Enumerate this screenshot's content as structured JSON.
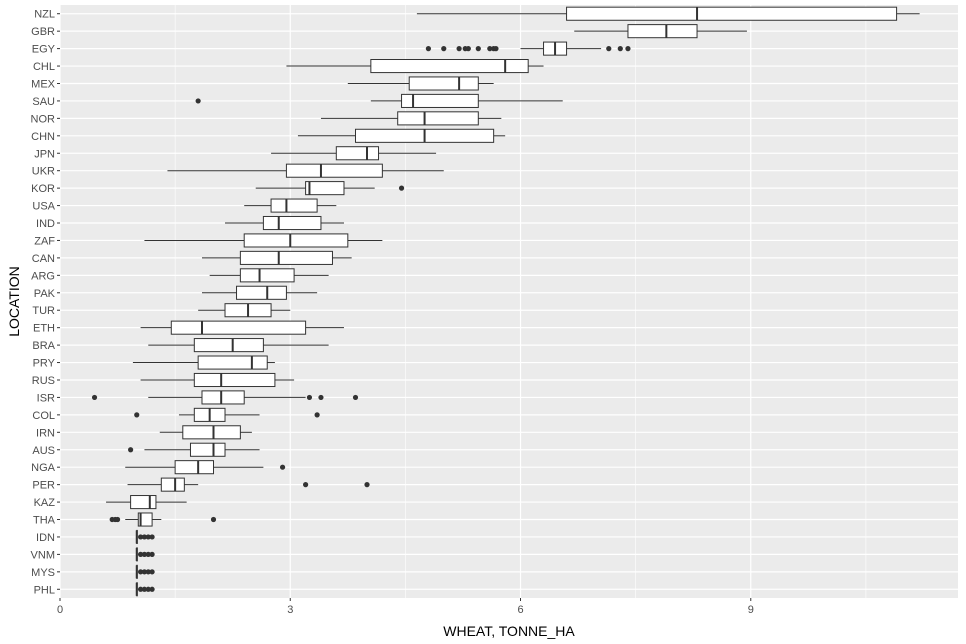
{
  "chart_data": {
    "type": "boxplot",
    "orientation": "horizontal",
    "xlabel": "WHEAT, TONNE_HA",
    "ylabel": "LOCATION",
    "xlim": [
      0,
      11.7
    ],
    "x_ticks": [
      0,
      3,
      6,
      9
    ],
    "x_tick_labels": [
      "0",
      "3",
      "6",
      "9"
    ],
    "grid": true,
    "colors": {
      "panel": "#ebebeb",
      "grid_major": "#ffffff",
      "box_fill": "#ffffff",
      "stroke": "#333333"
    },
    "categories": [
      "NZL",
      "GBR",
      "EGY",
      "CHL",
      "MEX",
      "SAU",
      "NOR",
      "CHN",
      "JPN",
      "UKR",
      "KOR",
      "USA",
      "IND",
      "ZAF",
      "CAN",
      "ARG",
      "PAK",
      "TUR",
      "ETH",
      "BRA",
      "PRY",
      "RUS",
      "ISR",
      "COL",
      "IRN",
      "AUS",
      "NGA",
      "PER",
      "KAZ",
      "THA",
      "IDN",
      "VNM",
      "MYS",
      "PHL"
    ],
    "boxes": [
      {
        "label": "NZL",
        "lower": 4.65,
        "q1": 6.6,
        "median": 8.3,
        "q3": 10.9,
        "upper": 11.2,
        "outliers": []
      },
      {
        "label": "GBR",
        "lower": 6.7,
        "q1": 7.4,
        "median": 7.9,
        "q3": 8.3,
        "upper": 8.95,
        "outliers": []
      },
      {
        "label": "EGY",
        "lower": 6.0,
        "q1": 6.3,
        "median": 6.45,
        "q3": 6.6,
        "upper": 7.05,
        "outliers": [
          4.8,
          5.0,
          5.2,
          5.28,
          5.32,
          5.45,
          5.6,
          5.65,
          5.68,
          7.15,
          7.3,
          7.4
        ]
      },
      {
        "label": "CHL",
        "lower": 2.95,
        "q1": 4.05,
        "median": 5.8,
        "q3": 6.1,
        "upper": 6.3,
        "outliers": []
      },
      {
        "label": "MEX",
        "lower": 3.75,
        "q1": 4.55,
        "median": 5.2,
        "q3": 5.45,
        "upper": 5.65,
        "outliers": []
      },
      {
        "label": "SAU",
        "lower": 4.05,
        "q1": 4.45,
        "median": 4.6,
        "q3": 5.45,
        "upper": 6.55,
        "outliers": [
          1.8
        ]
      },
      {
        "label": "NOR",
        "lower": 3.4,
        "q1": 4.4,
        "median": 4.75,
        "q3": 5.45,
        "upper": 5.75,
        "outliers": []
      },
      {
        "label": "CHN",
        "lower": 3.1,
        "q1": 3.85,
        "median": 4.75,
        "q3": 5.65,
        "upper": 5.8,
        "outliers": []
      },
      {
        "label": "JPN",
        "lower": 2.75,
        "q1": 3.6,
        "median": 4.0,
        "q3": 4.15,
        "upper": 4.9,
        "outliers": []
      },
      {
        "label": "UKR",
        "lower": 1.4,
        "q1": 2.95,
        "median": 3.4,
        "q3": 4.2,
        "upper": 5.0,
        "outliers": []
      },
      {
        "label": "KOR",
        "lower": 2.55,
        "q1": 3.2,
        "median": 3.25,
        "q3": 3.7,
        "upper": 4.1,
        "outliers": [
          4.45
        ]
      },
      {
        "label": "USA",
        "lower": 2.4,
        "q1": 2.75,
        "median": 2.95,
        "q3": 3.35,
        "upper": 3.6,
        "outliers": []
      },
      {
        "label": "IND",
        "lower": 2.15,
        "q1": 2.65,
        "median": 2.85,
        "q3": 3.4,
        "upper": 3.7,
        "outliers": []
      },
      {
        "label": "ZAF",
        "lower": 1.1,
        "q1": 2.4,
        "median": 3.0,
        "q3": 3.75,
        "upper": 4.2,
        "outliers": []
      },
      {
        "label": "CAN",
        "lower": 1.85,
        "q1": 2.35,
        "median": 2.85,
        "q3": 3.55,
        "upper": 3.8,
        "outliers": []
      },
      {
        "label": "ARG",
        "lower": 1.95,
        "q1": 2.35,
        "median": 2.6,
        "q3": 3.05,
        "upper": 3.5,
        "outliers": []
      },
      {
        "label": "PAK",
        "lower": 1.85,
        "q1": 2.3,
        "median": 2.7,
        "q3": 2.95,
        "upper": 3.35,
        "outliers": []
      },
      {
        "label": "TUR",
        "lower": 1.8,
        "q1": 2.15,
        "median": 2.45,
        "q3": 2.75,
        "upper": 3.0,
        "outliers": []
      },
      {
        "label": "ETH",
        "lower": 1.05,
        "q1": 1.45,
        "median": 1.85,
        "q3": 3.2,
        "upper": 3.7,
        "outliers": []
      },
      {
        "label": "BRA",
        "lower": 1.15,
        "q1": 1.75,
        "median": 2.25,
        "q3": 2.65,
        "upper": 3.5,
        "outliers": []
      },
      {
        "label": "PRY",
        "lower": 0.95,
        "q1": 1.8,
        "median": 2.5,
        "q3": 2.7,
        "upper": 2.8,
        "outliers": []
      },
      {
        "label": "RUS",
        "lower": 1.05,
        "q1": 1.75,
        "median": 2.1,
        "q3": 2.8,
        "upper": 3.05,
        "outliers": []
      },
      {
        "label": "ISR",
        "lower": 1.15,
        "q1": 1.85,
        "median": 2.1,
        "q3": 2.4,
        "upper": 3.2,
        "outliers": [
          0.45,
          3.25,
          3.4,
          3.85
        ]
      },
      {
        "label": "COL",
        "lower": 1.55,
        "q1": 1.75,
        "median": 1.95,
        "q3": 2.15,
        "upper": 2.6,
        "outliers": [
          1.0,
          3.35
        ]
      },
      {
        "label": "IRN",
        "lower": 1.3,
        "q1": 1.6,
        "median": 2.0,
        "q3": 2.35,
        "upper": 2.5,
        "outliers": []
      },
      {
        "label": "AUS",
        "lower": 1.1,
        "q1": 1.7,
        "median": 2.0,
        "q3": 2.15,
        "upper": 2.6,
        "outliers": [
          0.92
        ]
      },
      {
        "label": "NGA",
        "lower": 0.85,
        "q1": 1.5,
        "median": 1.8,
        "q3": 2.0,
        "upper": 2.65,
        "outliers": [
          2.9
        ]
      },
      {
        "label": "PER",
        "lower": 0.88,
        "q1": 1.32,
        "median": 1.5,
        "q3": 1.62,
        "upper": 1.8,
        "outliers": [
          3.2,
          4.0
        ]
      },
      {
        "label": "KAZ",
        "lower": 0.6,
        "q1": 0.92,
        "median": 1.17,
        "q3": 1.25,
        "upper": 1.65,
        "outliers": []
      },
      {
        "label": "THA",
        "lower": 0.85,
        "q1": 1.02,
        "median": 1.05,
        "q3": 1.2,
        "upper": 1.32,
        "outliers": [
          0.68,
          0.72,
          0.75,
          2.0
        ]
      },
      {
        "label": "IDN",
        "lower": 1.0,
        "q1": 1.0,
        "median": 1.0,
        "q3": 1.0,
        "upper": 1.0,
        "outliers": [
          1.05,
          1.1,
          1.15,
          1.2
        ]
      },
      {
        "label": "VNM",
        "lower": 1.0,
        "q1": 1.0,
        "median": 1.0,
        "q3": 1.0,
        "upper": 1.0,
        "outliers": [
          1.05,
          1.1,
          1.15,
          1.2
        ]
      },
      {
        "label": "MYS",
        "lower": 1.0,
        "q1": 1.0,
        "median": 1.0,
        "q3": 1.0,
        "upper": 1.0,
        "outliers": [
          1.05,
          1.1,
          1.15,
          1.2
        ]
      },
      {
        "label": "PHL",
        "lower": 1.0,
        "q1": 1.0,
        "median": 1.0,
        "q3": 1.0,
        "upper": 1.0,
        "outliers": [
          1.05,
          1.1,
          1.15,
          1.2
        ]
      }
    ]
  }
}
